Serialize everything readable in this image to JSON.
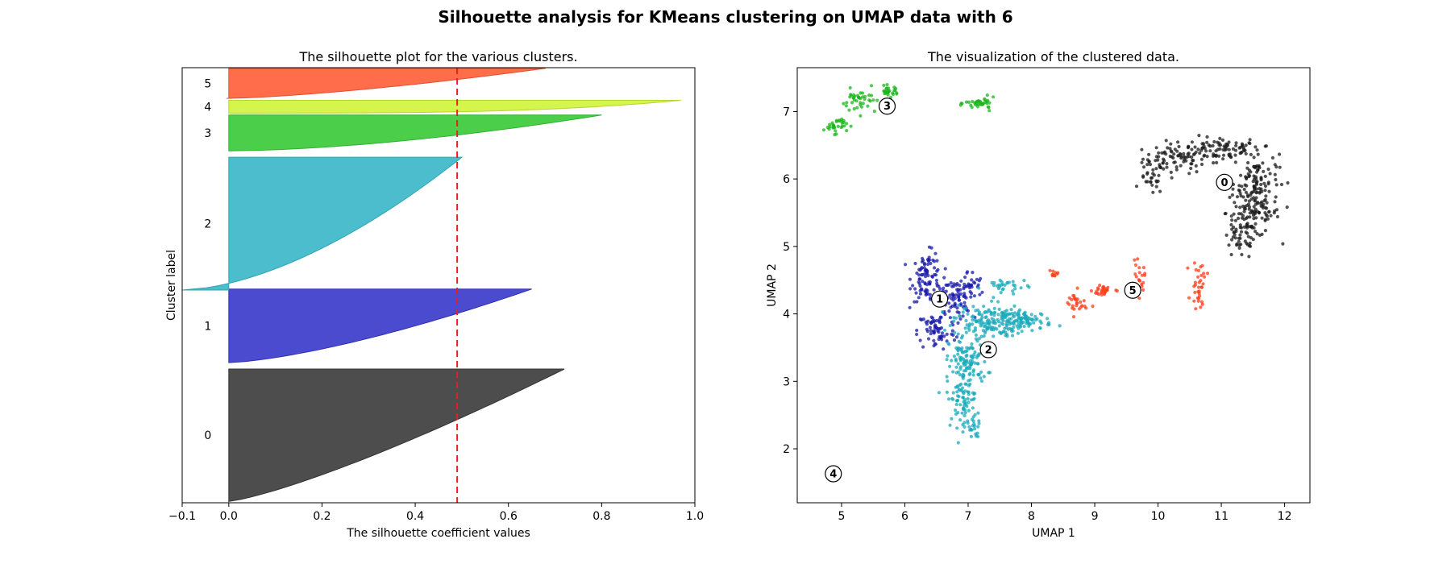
{
  "suptitle": "Silhouette analysis for KMeans clustering on UMAP data with 6",
  "chart_data": [
    {
      "type": "area",
      "title": "The silhouette plot for the various clusters.",
      "xlabel": "The silhouette coefficient values",
      "ylabel": "Cluster label",
      "xlim": [
        -0.1,
        1.0
      ],
      "xticks": [
        -0.1,
        0.0,
        0.2,
        0.4,
        0.6,
        0.8,
        1.0
      ],
      "xtick_labels": [
        "−0.1",
        "0.0",
        "0.2",
        "0.4",
        "0.6",
        "0.8",
        "1.0"
      ],
      "ylim": [
        0,
        1360
      ],
      "average_silhouette": 0.49,
      "clusters": [
        {
          "label": "0",
          "color": "#4d4d4d",
          "edge": "#333333",
          "y0": 4,
          "y1": 418,
          "max": 0.72,
          "min": 0.0,
          "curve": 0.8
        },
        {
          "label": "1",
          "color": "#4b4bcf",
          "edge": "#3030b0",
          "y0": 438,
          "y1": 668,
          "max": 0.65,
          "min": 0.0,
          "curve": 0.7
        },
        {
          "label": "2",
          "color": "#4bbdcc",
          "edge": "#30a5b5",
          "y0": 665,
          "y1": 1080,
          "max": 0.5,
          "min": -0.1,
          "curve": 0.6
        },
        {
          "label": "3",
          "color": "#4bcf4b",
          "edge": "#30b030",
          "y0": 1100,
          "y1": 1212,
          "max": 0.8,
          "min": 0.0,
          "curve": 0.6
        },
        {
          "label": "4",
          "color": "#d4f54b",
          "edge": "#b5d630",
          "y0": 1218,
          "y1": 1258,
          "max": 0.97,
          "min": 0.0,
          "curve": 0.3
        },
        {
          "label": "5",
          "color": "#ff6d4b",
          "edge": "#e05030",
          "y0": 1264,
          "y1": 1358,
          "max": 0.68,
          "min": -0.005,
          "curve": 0.7
        }
      ]
    },
    {
      "type": "scatter",
      "title": "The visualization of the clustered data.",
      "xlabel": "UMAP 1",
      "ylabel": "UMAP 2",
      "xlim": [
        4.3,
        12.4
      ],
      "ylim": [
        1.2,
        7.65
      ],
      "xticks": [
        5,
        6,
        7,
        8,
        9,
        10,
        11,
        12
      ],
      "yticks": [
        2,
        3,
        4,
        5,
        6,
        7
      ],
      "clusters": [
        {
          "label": "0",
          "color": "#1a1a1a",
          "center": [
            11.05,
            5.95
          ],
          "n": 430,
          "blobs": [
            [
              10.3,
              6.3,
              0.45,
              0.18,
              1.2
            ],
            [
              11.0,
              6.45,
              0.5,
              0.15,
              1.2
            ],
            [
              11.55,
              6.0,
              0.3,
              0.35,
              1.5
            ],
            [
              11.5,
              5.5,
              0.35,
              0.3,
              1.5
            ],
            [
              11.3,
              5.1,
              0.25,
              0.25,
              0.6
            ],
            [
              9.9,
              6.0,
              0.15,
              0.2,
              0.4
            ]
          ]
        },
        {
          "label": "1",
          "color": "#1a1aaa",
          "center": [
            6.55,
            4.22
          ],
          "n": 260,
          "blobs": [
            [
              6.35,
              4.55,
              0.2,
              0.3,
              1.2
            ],
            [
              6.75,
              4.2,
              0.25,
              0.25,
              1.0
            ],
            [
              6.5,
              3.75,
              0.25,
              0.25,
              0.9
            ],
            [
              7.0,
              4.4,
              0.2,
              0.2,
              0.5
            ]
          ]
        },
        {
          "label": "2",
          "color": "#1aaabb",
          "center": [
            7.32,
            3.47
          ],
          "n": 470,
          "blobs": [
            [
              7.3,
              3.9,
              0.45,
              0.2,
              1.4
            ],
            [
              7.0,
              3.3,
              0.25,
              0.3,
              1.0
            ],
            [
              6.9,
              2.75,
              0.2,
              0.35,
              0.8
            ],
            [
              7.9,
              3.9,
              0.35,
              0.12,
              0.8
            ],
            [
              7.1,
              2.3,
              0.1,
              0.12,
              0.2
            ],
            [
              7.6,
              4.4,
              0.3,
              0.12,
              0.3
            ]
          ]
        },
        {
          "label": "3",
          "color": "#1ab51a",
          "center": [
            5.72,
            7.08
          ],
          "n": 140,
          "blobs": [
            [
              4.9,
              6.8,
              0.15,
              0.1,
              0.6
            ],
            [
              5.3,
              7.15,
              0.25,
              0.15,
              0.8
            ],
            [
              5.75,
              7.3,
              0.12,
              0.06,
              0.5
            ],
            [
              7.2,
              7.12,
              0.2,
              0.07,
              0.7
            ]
          ]
        },
        {
          "label": "4",
          "color": "#d4f51a",
          "center": [
            4.87,
            1.63
          ],
          "n": 12,
          "blobs": [
            [
              4.87,
              1.65,
              0.04,
              0.04,
              1.0
            ]
          ]
        },
        {
          "label": "5",
          "color": "#ff3d1a",
          "center": [
            9.6,
            4.35
          ],
          "n": 120,
          "blobs": [
            [
              8.7,
              4.15,
              0.15,
              0.15,
              0.8
            ],
            [
              9.15,
              4.35,
              0.15,
              0.08,
              0.8
            ],
            [
              9.7,
              4.5,
              0.08,
              0.2,
              0.6
            ],
            [
              10.65,
              4.45,
              0.1,
              0.3,
              1.0
            ],
            [
              8.35,
              4.6,
              0.06,
              0.04,
              0.3
            ]
          ]
        }
      ]
    }
  ]
}
